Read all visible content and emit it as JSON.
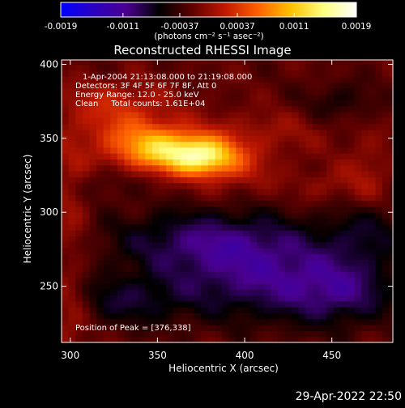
{
  "chart_data": {
    "type": "heatmap",
    "title": "Reconstructed RHESSI Image",
    "xlabel": "Heliocentric X (arcsec)",
    "ylabel": "Heliocentric Y (arcsec)",
    "xlim": [
      295,
      485
    ],
    "ylim": [
      212,
      403
    ],
    "x_ticks": [
      300,
      350,
      400,
      450
    ],
    "y_ticks": [
      250,
      300,
      350,
      400
    ],
    "colorbar": {
      "ticks": [
        -0.0019,
        -0.0011,
        -0.00037,
        0.00037,
        0.0011,
        0.0019
      ],
      "tick_labels": [
        "-0.0019",
        "-0.0011",
        "-0.00037",
        "0.00037",
        "0.0011",
        "0.0019"
      ],
      "range": [
        -0.0019,
        0.0019
      ],
      "units_label": "(photons cm⁻² s⁻¹ asec⁻²)",
      "colors": [
        "#0000ff",
        "#2a00c0",
        "#4a0090",
        "#000000",
        "#600000",
        "#c01800",
        "#ff6000",
        "#ffc000",
        "#ffff80",
        "#ffffff"
      ]
    },
    "annotations": [
      "1-Apr-2004 21:13:08.000 to 21:19:08.000",
      "Detectors: 3F 4F 5F 6F 7F 8F, Att 0",
      "Energy Range: 12.0 - 25.0 keV",
      "Clean     Total counts: 1.61E+04"
    ],
    "peak_label": "Position of Peak = [376,338]",
    "peak": {
      "x": 376,
      "y": 338
    },
    "blobs": [
      {
        "x": 376,
        "y": 338,
        "sx": 14,
        "sy": 9,
        "v": 0.00135
      },
      {
        "x": 352,
        "y": 342,
        "sx": 17,
        "sy": 10,
        "v": 0.00095
      },
      {
        "x": 335,
        "y": 352,
        "sx": 22,
        "sy": 14,
        "v": 0.00055
      },
      {
        "x": 395,
        "y": 330,
        "sx": 18,
        "sy": 12,
        "v": 0.00035
      },
      {
        "x": 325,
        "y": 375,
        "sx": 22,
        "sy": 11,
        "v": 0.00035
      },
      {
        "x": 410,
        "y": 355,
        "sx": 28,
        "sy": 10,
        "v": 0.00025
      },
      {
        "x": 300,
        "y": 310,
        "sx": 8,
        "sy": 30,
        "v": 0.0003
      },
      {
        "x": 300,
        "y": 232,
        "sx": 8,
        "sy": 22,
        "v": 0.00035
      },
      {
        "x": 470,
        "y": 322,
        "sx": 10,
        "sy": 20,
        "v": 0.0003
      },
      {
        "x": 445,
        "y": 318,
        "sx": 12,
        "sy": 8,
        "v": 0.00022
      },
      {
        "x": 380,
        "y": 282,
        "sx": 40,
        "sy": 15,
        "v": -0.0006
      },
      {
        "x": 415,
        "y": 255,
        "sx": 45,
        "sy": 20,
        "v": -0.0007
      },
      {
        "x": 455,
        "y": 245,
        "sx": 20,
        "sy": 15,
        "v": -0.0004
      },
      {
        "x": 470,
        "y": 290,
        "sx": 15,
        "sy": 15,
        "v": -0.0004
      },
      {
        "x": 330,
        "y": 240,
        "sx": 25,
        "sy": 12,
        "v": -0.0004
      },
      {
        "x": 455,
        "y": 375,
        "sx": 15,
        "sy": 10,
        "v": -0.0003
      },
      {
        "x": 320,
        "y": 320,
        "sx": 15,
        "sy": 8,
        "v": -0.0002
      }
    ]
  },
  "timestamp": "29-Apr-2022 22:50"
}
